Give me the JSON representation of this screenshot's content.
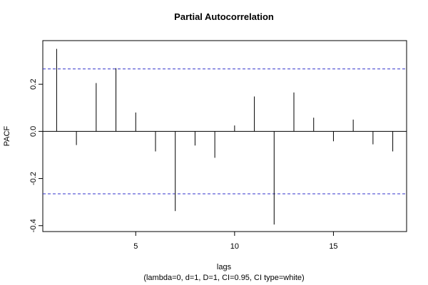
{
  "chart_data": {
    "type": "bar",
    "title": "Partial Autocorrelation",
    "xlabel": "lags",
    "ylabel": "PACF",
    "subtitle": "(lambda=0, d=1, D=1, CI=0.95, CI type=white)",
    "xlim": [
      0.3,
      18.7
    ],
    "ylim": [
      -0.425,
      0.385
    ],
    "xticks": [
      5,
      10,
      15
    ],
    "yticks": [
      -0.4,
      -0.2,
      0.0,
      0.2
    ],
    "ci": [
      0.265,
      -0.265
    ],
    "ci_color": "#3333cc",
    "x": [
      1,
      2,
      3,
      4,
      5,
      6,
      7,
      8,
      9,
      10,
      11,
      12,
      13,
      14,
      15,
      16,
      17,
      18
    ],
    "values": [
      0.35,
      -0.058,
      0.205,
      0.268,
      0.08,
      -0.085,
      -0.338,
      -0.06,
      -0.112,
      0.025,
      0.148,
      -0.395,
      0.165,
      0.058,
      -0.042,
      0.05,
      -0.055,
      -0.085
    ],
    "grid": false
  }
}
